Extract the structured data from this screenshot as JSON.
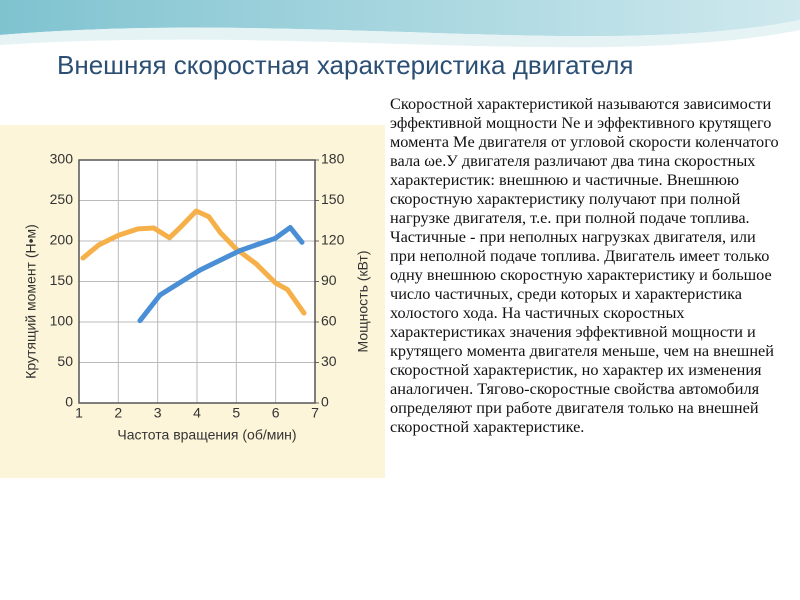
{
  "slide": {
    "title": "Внешняя скоростная характеристика двигателя",
    "text": "Скоростной характеристикой называются зависимости эффективной мощности Ne и эффективного крутящего момента Me двигателя от угловой скорости коленчатого вала ωe.У двигателя различают два тина скоростных характеристик: внешнюю и частичные. Внешнюю скоростную характеристику получают при полной нагрузке двигателя, т.е. при полной подаче топлива. Частичные - при неполных нагрузках двигателя, или при неполной подаче топлива. Двигатель имеет только одну внешнюю скоростную характеристику и большое число частичных, среди которых и характеристика холостого хода. На частичных скоростных характеристиках значения эффективной мощности и крутящего момента двигателя меньше, чем на внешней скоростной характеристик, но характер их изменения аналогичен. Тягово-скоростные свойства автомобиля определяют при работе двигателя только на внешней скоростной характеристике."
  },
  "chart_data": {
    "type": "line",
    "x_label": "Частота вращения (об/мин)",
    "y_label": "Крутящий момент (Н•м)",
    "y2_label": "Мощность (кВт)",
    "xlim": [
      1,
      7
    ],
    "xticks": [
      1,
      2,
      3,
      4,
      5,
      6,
      7
    ],
    "ylim": [
      0,
      300
    ],
    "yticks": [
      0,
      50,
      100,
      150,
      200,
      250,
      300
    ],
    "y2lim": [
      0,
      180
    ],
    "y2ticks": [
      0,
      30,
      60,
      90,
      120,
      150,
      180
    ],
    "grid": true,
    "series": [
      {
        "color": "#f5b04a",
        "x": [
          1.1,
          1.5,
          2,
          2.5,
          2.9,
          3.3,
          3.6,
          3.98,
          4.3,
          4.6,
          5,
          5.5,
          6,
          6.3,
          6.72
        ],
        "values": [
          179,
          195,
          207,
          215,
          216,
          204,
          218,
          237,
          230,
          210,
          190,
          172,
          148,
          140,
          111
        ]
      },
      {
        "color": "#4a8fd6",
        "axis": "y2",
        "x": [
          2.55,
          3.06,
          4.08,
          5.1,
          5.99,
          6.37,
          6.67
        ],
        "values": [
          61,
          80,
          98.5,
          113,
          122,
          130,
          119
        ]
      }
    ]
  }
}
